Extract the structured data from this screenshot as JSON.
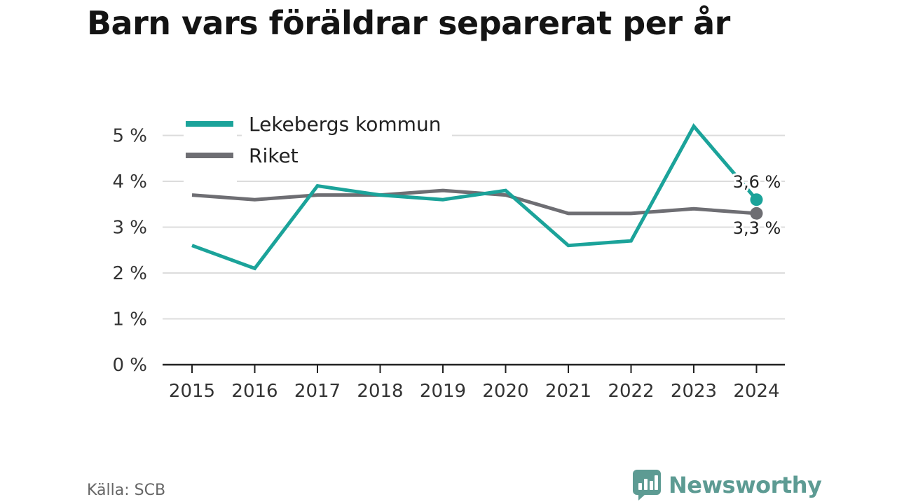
{
  "title": "Barn vars föräldrar separerat per år",
  "source": "Källa: SCB",
  "brand": {
    "name": "Newsworthy",
    "icon": "bar-chart-speech-bubble-icon"
  },
  "chart_data": {
    "type": "line",
    "x": [
      "2015",
      "2016",
      "2017",
      "2018",
      "2019",
      "2020",
      "2021",
      "2022",
      "2023",
      "2024"
    ],
    "ylim": [
      0,
      5
    ],
    "yticks": [
      0,
      1,
      2,
      3,
      4,
      5
    ],
    "ytick_labels": [
      "0 %",
      "1 %",
      "2 %",
      "3 %",
      "4 %",
      "5 %"
    ],
    "grid": true,
    "legend_position": "top-left",
    "series": [
      {
        "name": "Lekebergs kommun",
        "color": "#1ba39a",
        "values": [
          2.6,
          2.1,
          3.9,
          3.7,
          3.6,
          3.8,
          2.6,
          2.7,
          5.2,
          3.6
        ],
        "end_label": "3,6 %"
      },
      {
        "name": "Riket",
        "color": "#6e6e73",
        "values": [
          3.7,
          3.6,
          3.7,
          3.7,
          3.8,
          3.7,
          3.3,
          3.3,
          3.4,
          3.3
        ],
        "end_label": "3,3 %"
      }
    ]
  }
}
